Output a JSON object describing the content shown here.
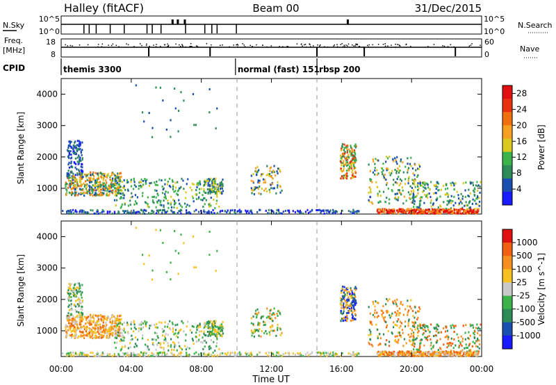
{
  "header": {
    "left": "Halley (fitACF)",
    "center": "Beam 00",
    "right": "31/Dec/2015"
  },
  "status": {
    "nsky_label": "N.Sky",
    "nsky_ticks": [
      "10^5",
      "10^0"
    ],
    "nsearch_label": "N.Search",
    "nsearch_ticks": [
      "10^5",
      "10^0"
    ],
    "freq_label": "Freq.",
    "freq_unit": "[MHz]",
    "freq_ticks": [
      "18",
      "8"
    ],
    "nave_label": "Nave",
    "nave_ticks": [
      "60",
      "0"
    ],
    "cpid_label": "CPID",
    "cpid_segments": [
      {
        "label": "themis 3300",
        "start": 0.0,
        "end": 9.95
      },
      {
        "label": "normal (fast) 151",
        "start": 9.95,
        "end": 14.6
      },
      {
        "label": "rbsp 200",
        "start": 14.6,
        "end": 24.0
      }
    ]
  },
  "axes": {
    "xlabel": "Time UT",
    "ylabel": "Slant Range [km]",
    "xticks": [
      "00:00",
      "04:00",
      "08:00",
      "12:00",
      "16:00",
      "20:00",
      "00:00"
    ],
    "yticks": [
      "1000",
      "2000",
      "3000",
      "4000"
    ]
  },
  "chart_data": [
    {
      "type": "heatmap",
      "panel": "power",
      "x_range_hours": [
        0,
        24
      ],
      "y_range_km": [
        180,
        4500
      ],
      "colorbar_label": "Power [dB]",
      "colorbar_ticks": [
        "4",
        "8",
        "12",
        "16",
        "20",
        "24",
        "28"
      ],
      "colorbar_range": [
        0,
        30
      ],
      "colors": [
        "#1a1aff",
        "#1a4fb0",
        "#2e8b57",
        "#3cb34a",
        "#d8c820",
        "#f5a020",
        "#f07010",
        "#e83010",
        "#e01010"
      ],
      "scatter_regions": [
        {
          "t0": 0.6,
          "t1": 3.3,
          "r0": 800,
          "r1": 1500,
          "level": "mixed"
        },
        {
          "t0": 0.4,
          "t1": 1.2,
          "r0": 1300,
          "r1": 2600,
          "level": "low"
        },
        {
          "t0": 16.0,
          "t1": 16.7,
          "r0": 1300,
          "r1": 2400,
          "level": "mixed"
        },
        {
          "t0": 18.0,
          "t1": 23.8,
          "r0": 180,
          "r1": 330,
          "level": "high"
        }
      ]
    },
    {
      "type": "heatmap",
      "panel": "velocity",
      "x_range_hours": [
        0,
        24
      ],
      "y_range_km": [
        180,
        4500
      ],
      "colorbar_label": "Velocity [m s^-1]",
      "colorbar_ticks": [
        "1000",
        "500",
        "100",
        "25",
        "-25",
        "-100",
        "-500",
        "-1000"
      ],
      "colors": [
        "#1a1aff",
        "#1a4fb0",
        "#2e8b57",
        "#3cb34a",
        "#c8c8c8",
        "#f5c020",
        "#f59020",
        "#f06010",
        "#e01010"
      ]
    }
  ]
}
